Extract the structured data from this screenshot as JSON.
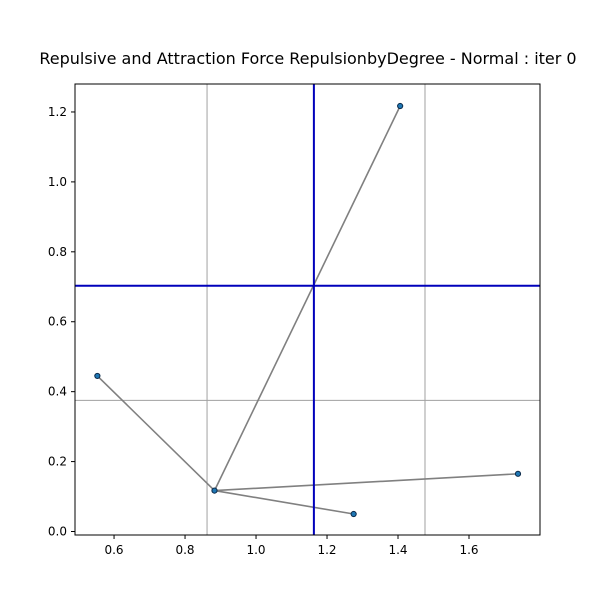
{
  "chart_data": {
    "type": "scatter",
    "title": "Repulsive and Attraction Force RepulsionbyDegree - Normal : iter 0",
    "xlabel": "",
    "ylabel": "",
    "xlim": [
      0.49,
      1.8
    ],
    "ylim": [
      -0.01,
      1.28
    ],
    "xticks": [
      0.6,
      0.8,
      1.0,
      1.2,
      1.4,
      1.6
    ],
    "xtick_labels": [
      "0.6",
      "0.8",
      "1.0",
      "1.2",
      "1.4",
      "1.6"
    ],
    "yticks": [
      0.0,
      0.2,
      0.4,
      0.6,
      0.8,
      1.0,
      1.2
    ],
    "ytick_labels": [
      "0.0",
      "0.2",
      "0.4",
      "0.6",
      "0.8",
      "1.0",
      "1.2"
    ],
    "grid": false,
    "nodes": [
      {
        "id": "n0",
        "x": 0.883,
        "y": 0.117
      },
      {
        "id": "n1",
        "x": 1.406,
        "y": 1.217
      },
      {
        "id": "n2",
        "x": 0.553,
        "y": 0.445
      },
      {
        "id": "n3",
        "x": 1.738,
        "y": 0.165
      },
      {
        "id": "n4",
        "x": 1.275,
        "y": 0.05
      }
    ],
    "edges": [
      [
        "n0",
        "n1"
      ],
      [
        "n0",
        "n2"
      ],
      [
        "n0",
        "n3"
      ],
      [
        "n0",
        "n4"
      ]
    ],
    "reference_lines": {
      "gray_vertical_x": [
        0.862,
        1.476
      ],
      "gray_horizontal_y": [
        0.375
      ],
      "blue_vertical_x": [
        1.163
      ],
      "blue_horizontal_y": [
        0.703
      ]
    },
    "colors": {
      "node": "#1f77b4",
      "node_edge": "#0b2a4a",
      "edge": "#808080",
      "gray_line": "#a0a0a0",
      "blue_line": "#0000bb",
      "axes": "#000000"
    }
  }
}
